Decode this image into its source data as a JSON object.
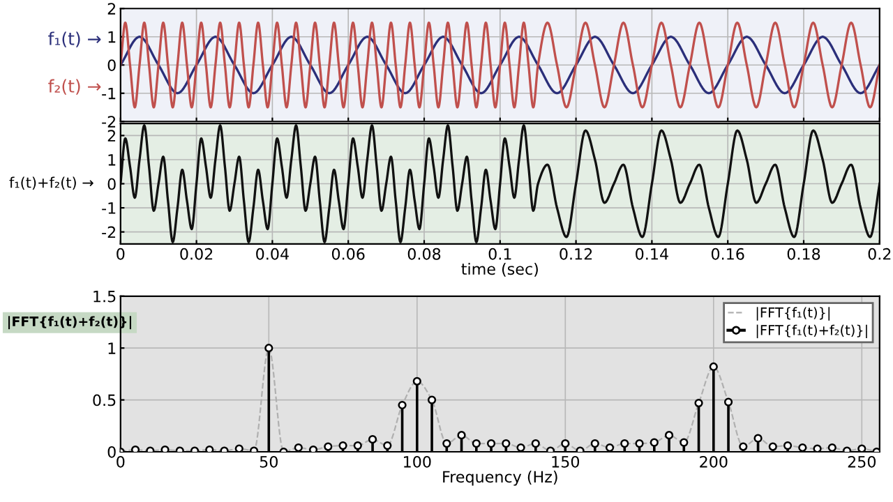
{
  "chart_data": [
    {
      "type": "line",
      "xlim": [
        0,
        0.2
      ],
      "xticks": [
        0,
        0.02,
        0.04,
        0.06,
        0.08,
        0.1,
        0.12,
        0.14,
        0.16,
        0.18,
        0.2
      ],
      "ylim": [
        -2,
        2
      ],
      "yticks": [
        -2,
        -1,
        0,
        1,
        2
      ],
      "grid": true,
      "tick_labels": "y",
      "line_style": "solid",
      "series": [
        {
          "name": "f₁(t) →",
          "color": "#2b2f7a",
          "x": [
            0,
            0.005,
            0.01,
            0.015,
            0.02,
            0.025,
            0.03,
            0.035,
            0.04,
            0.045,
            0.05,
            0.055,
            0.06,
            0.065,
            0.07,
            0.075,
            0.08,
            0.085,
            0.09,
            0.095,
            0.1,
            0.105,
            0.11,
            0.115,
            0.12,
            0.125,
            0.13,
            0.135,
            0.14,
            0.145,
            0.15,
            0.155,
            0.16,
            0.165,
            0.17,
            0.175,
            0.18,
            0.185,
            0.19,
            0.195,
            0.2
          ],
          "values": [
            0,
            1,
            0,
            -1,
            0,
            1,
            0,
            -1,
            0,
            1,
            0,
            -1,
            0,
            1,
            0,
            -1,
            0,
            1,
            0,
            -1,
            0,
            1,
            0,
            -1,
            0,
            1,
            0,
            -1,
            0,
            1,
            0,
            -1,
            0,
            1,
            0,
            -1,
            0,
            1,
            0,
            -1,
            0
          ]
        },
        {
          "name": "f₂(t) →",
          "color": "#c0504d",
          "x": [
            0,
            0.00125,
            0.0025,
            0.00375,
            0.005,
            0.00625,
            0.0075,
            0.00875,
            0.01,
            0.01125,
            0.0125,
            0.01375,
            0.015,
            0.01625,
            0.0175,
            0.01875,
            0.02,
            0.02125,
            0.0225,
            0.02375,
            0.025,
            0.02625,
            0.0275,
            0.02875,
            0.03,
            0.03125,
            0.0325,
            0.03375,
            0.035,
            0.03625,
            0.0375,
            0.03875,
            0.04,
            0.04125,
            0.0425,
            0.04375,
            0.045,
            0.04625,
            0.0475,
            0.04875,
            0.05,
            0.05125,
            0.0525,
            0.05375,
            0.055,
            0.05625,
            0.0575,
            0.05875,
            0.06,
            0.06125,
            0.0625,
            0.06375,
            0.065,
            0.06625,
            0.0675,
            0.06875,
            0.07,
            0.07125,
            0.0725,
            0.07375,
            0.075,
            0.07625,
            0.0775,
            0.07875,
            0.08,
            0.08125,
            0.0825,
            0.08375,
            0.085,
            0.08625,
            0.0875,
            0.08875,
            0.09,
            0.09125,
            0.0925,
            0.09375,
            0.095,
            0.09625,
            0.0975,
            0.09875,
            0.1,
            0.10125,
            0.1025,
            0.10375,
            0.105,
            0.10625,
            0.1075,
            0.10875,
            0.11,
            0.1125,
            0.115,
            0.1175,
            0.12,
            0.1225,
            0.125,
            0.1275,
            0.13,
            0.1325,
            0.135,
            0.1375,
            0.14,
            0.1425,
            0.145,
            0.1475,
            0.15,
            0.1525,
            0.155,
            0.1575,
            0.16,
            0.1625,
            0.165,
            0.1675,
            0.17,
            0.1725,
            0.175,
            0.1775,
            0.18,
            0.1825,
            0.185,
            0.1875,
            0.19,
            0.1925,
            0.195,
            0.1975,
            0.2
          ],
          "values": [
            0,
            1.5,
            0,
            -1.5,
            0,
            1.5,
            0,
            -1.5,
            0,
            1.5,
            0,
            -1.5,
            0,
            1.5,
            0,
            -1.5,
            0,
            1.5,
            0,
            -1.5,
            0,
            1.5,
            0,
            -1.5,
            0,
            1.5,
            0,
            -1.5,
            0,
            1.5,
            0,
            -1.5,
            0,
            1.5,
            0,
            -1.5,
            0,
            1.5,
            0,
            -1.5,
            0,
            1.5,
            0,
            -1.5,
            0,
            1.5,
            0,
            -1.5,
            0,
            1.5,
            0,
            -1.5,
            0,
            1.5,
            0,
            -1.5,
            0,
            1.5,
            0,
            -1.5,
            0,
            1.5,
            0,
            -1.5,
            0,
            1.5,
            0,
            -1.5,
            0,
            1.5,
            0,
            -1.5,
            0,
            1.5,
            0,
            -1.5,
            0,
            1.5,
            0,
            -1.5,
            0,
            1.5,
            0,
            -1.5,
            0,
            1.5,
            0,
            -1.5,
            0,
            1.5,
            0,
            -1.5,
            0,
            1.5,
            0,
            -1.5,
            0,
            1.5,
            0,
            -1.5,
            0,
            1.5,
            0,
            -1.5,
            0,
            1.5,
            0,
            -1.5,
            0,
            1.5,
            0,
            -1.5,
            0,
            1.5,
            0,
            -1.5,
            0,
            1.5,
            0,
            -1.5,
            0,
            1.5,
            0,
            -1.5,
            0
          ]
        }
      ]
    },
    {
      "type": "line",
      "ylabel": "f₁(t)+f₂(t) →",
      "xlabel": "time (sec)",
      "xlim": [
        0,
        0.2
      ],
      "xticks": [
        0,
        0.02,
        0.04,
        0.06,
        0.08,
        0.1,
        0.12,
        0.14,
        0.16,
        0.18,
        0.2
      ],
      "ylim": [
        -2.5,
        2.5
      ],
      "yticks": [
        -2,
        -1,
        0,
        1,
        2
      ],
      "grid": true,
      "line_style": "solid",
      "series": [
        {
          "color": "#111111",
          "x": [
            0,
            0.00125,
            0.0025,
            0.00375,
            0.005,
            0.00625,
            0.0075,
            0.00875,
            0.01,
            0.01125,
            0.0125,
            0.01375,
            0.015,
            0.01625,
            0.0175,
            0.01875,
            0.02,
            0.02125,
            0.0225,
            0.02375,
            0.025,
            0.02625,
            0.0275,
            0.02875,
            0.03,
            0.03125,
            0.0325,
            0.03375,
            0.035,
            0.03625,
            0.0375,
            0.03875,
            0.04,
            0.04125,
            0.0425,
            0.04375,
            0.045,
            0.04625,
            0.0475,
            0.04875,
            0.05,
            0.05125,
            0.0525,
            0.05375,
            0.055,
            0.05625,
            0.0575,
            0.05875,
            0.06,
            0.06125,
            0.0625,
            0.06375,
            0.065,
            0.06625,
            0.0675,
            0.06875,
            0.07,
            0.07125,
            0.0725,
            0.07375,
            0.075,
            0.07625,
            0.0775,
            0.07875,
            0.08,
            0.08125,
            0.0825,
            0.08375,
            0.085,
            0.08625,
            0.0875,
            0.08875,
            0.09,
            0.09125,
            0.0925,
            0.09375,
            0.095,
            0.09625,
            0.0975,
            0.09875,
            0.1,
            0.10125,
            0.1025,
            0.10375,
            0.105,
            0.10625,
            0.1075,
            0.10875,
            0.11,
            0.1125,
            0.115,
            0.1175,
            0.12,
            0.1225,
            0.125,
            0.1275,
            0.13,
            0.1325,
            0.135,
            0.1375,
            0.14,
            0.1425,
            0.145,
            0.1475,
            0.15,
            0.1525,
            0.155,
            0.1575,
            0.16,
            0.1625,
            0.165,
            0.1675,
            0.17,
            0.1725,
            0.175,
            0.1775,
            0.18,
            0.1825,
            0.185,
            0.1875,
            0.19,
            0.1925,
            0.195,
            0.1975,
            0.2
          ],
          "values": [
            0,
            1.88,
            0.71,
            -0.58,
            1,
            2.42,
            0.71,
            -1.12,
            0,
            1.12,
            -0.71,
            -2.42,
            -1,
            0.58,
            -0.71,
            -1.88,
            0,
            1.88,
            0.71,
            -0.58,
            1,
            2.42,
            0.71,
            -1.12,
            0,
            1.12,
            -0.71,
            -2.42,
            -1,
            0.58,
            -0.71,
            -1.88,
            0,
            1.88,
            0.71,
            -0.58,
            1,
            2.42,
            0.71,
            -1.12,
            0,
            1.12,
            -0.71,
            -2.42,
            -1,
            0.58,
            -0.71,
            -1.88,
            0,
            1.88,
            0.71,
            -0.58,
            1,
            2.42,
            0.71,
            -1.12,
            0,
            1.12,
            -0.71,
            -2.42,
            -1,
            0.58,
            -0.71,
            -1.88,
            0,
            1.88,
            0.71,
            -0.58,
            1,
            2.42,
            0.71,
            -1.12,
            0,
            1.12,
            -0.71,
            -2.42,
            -1,
            0.58,
            -0.71,
            -1.88,
            0,
            1.88,
            0.71,
            -0.58,
            1,
            2.42,
            0.71,
            -1.12,
            0,
            0.79,
            -1,
            -2.21,
            0,
            2.21,
            1,
            -0.79,
            0,
            0.79,
            -1,
            -2.21,
            0,
            2.21,
            1,
            -0.79,
            0,
            0.79,
            -1,
            -2.21,
            0,
            2.21,
            1,
            -0.79,
            0,
            0.79,
            -1,
            -2.21,
            0,
            2.21,
            1,
            -0.79,
            0,
            0.79,
            -1,
            -2.21,
            0
          ]
        }
      ]
    },
    {
      "type": "lollipop",
      "ylabel": "|FFT{f₁(t)+f₂(t)}|",
      "xlabel": "Frequency (Hz)",
      "xlim": [
        0,
        256
      ],
      "xticks": [
        0,
        50,
        100,
        150,
        200,
        250
      ],
      "ylim": [
        0,
        1.5
      ],
      "yticks": [
        0,
        0.5,
        1,
        1.5
      ],
      "grid": true,
      "legend": "top right",
      "x": [
        0,
        5,
        10,
        15,
        20,
        25,
        30,
        35,
        40,
        45,
        50,
        55,
        60,
        65,
        70,
        75,
        80,
        85,
        90,
        95,
        100,
        105,
        110,
        115,
        120,
        125,
        130,
        135,
        140,
        145,
        150,
        155,
        160,
        165,
        170,
        175,
        180,
        185,
        190,
        195,
        200,
        205,
        210,
        215,
        220,
        225,
        230,
        235,
        240,
        245,
        250,
        255
      ],
      "series": [
        {
          "name": "|FFT{f₁(t)}|",
          "type": "line",
          "line_style": "dashed",
          "color": "#b0b0b0",
          "values": [
            0,
            0.02,
            0.01,
            0.02,
            0.01,
            0.01,
            0.02,
            0.01,
            0.03,
            0.01,
            1.0,
            0,
            0.04,
            0.02,
            0.05,
            0.06,
            0.06,
            0.12,
            0.06,
            0.45,
            0.68,
            0.5,
            0.08,
            0.16,
            0.08,
            0.08,
            0.08,
            0.04,
            0.08,
            0.01,
            0.08,
            0.01,
            0.08,
            0.04,
            0.08,
            0.08,
            0.09,
            0.16,
            0.09,
            0.47,
            0.82,
            0.48,
            0.05,
            0.13,
            0.05,
            0.06,
            0.04,
            0.03,
            0.04,
            0.01,
            0.03,
            0
          ]
        },
        {
          "name": "|FFT{f₁(t)+f₂(t)}|",
          "color": "#000000",
          "marker": "circle",
          "values": [
            0,
            0.02,
            0.01,
            0.02,
            0.01,
            0.01,
            0.02,
            0.01,
            0.03,
            0.01,
            1.0,
            0,
            0.04,
            0.02,
            0.05,
            0.06,
            0.06,
            0.12,
            0.06,
            0.45,
            0.68,
            0.5,
            0.08,
            0.16,
            0.08,
            0.08,
            0.08,
            0.04,
            0.08,
            0.01,
            0.08,
            0.01,
            0.08,
            0.04,
            0.08,
            0.08,
            0.09,
            0.16,
            0.09,
            0.47,
            0.82,
            0.48,
            0.05,
            0.13,
            0.05,
            0.06,
            0.04,
            0.03,
            0.04,
            0.01,
            0.03,
            0
          ]
        }
      ]
    }
  ]
}
